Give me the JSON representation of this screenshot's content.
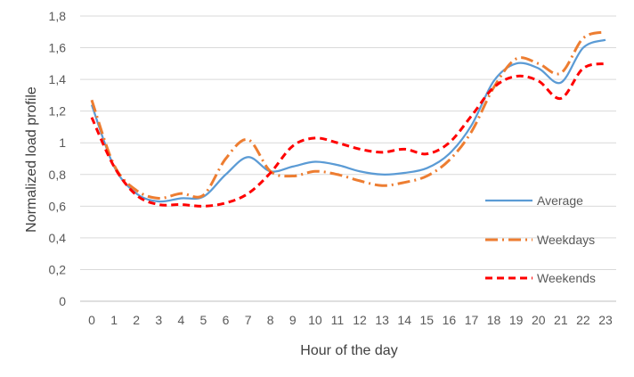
{
  "chart_data": {
    "type": "line",
    "title": "",
    "xlabel": "Hour of the day",
    "ylabel": "Normalized load profile",
    "x": [
      0,
      1,
      2,
      3,
      4,
      5,
      6,
      7,
      8,
      9,
      10,
      11,
      12,
      13,
      14,
      15,
      16,
      17,
      18,
      19,
      20,
      21,
      22,
      23
    ],
    "x_tick_labels": [
      "0",
      "1",
      "2",
      "3",
      "4",
      "5",
      "6",
      "7",
      "8",
      "9",
      "10",
      "11",
      "12",
      "13",
      "14",
      "15",
      "16",
      "17",
      "18",
      "19",
      "20",
      "21",
      "22",
      "23"
    ],
    "ylim": [
      0,
      1.8
    ],
    "y_ticks": [
      0,
      0.2,
      0.4,
      0.6,
      0.8,
      1,
      1.2,
      1.4,
      1.6,
      1.8
    ],
    "y_tick_labels": [
      "0",
      "0,2",
      "0,4",
      "0,6",
      "0,8",
      "1",
      "1,2",
      "1,4",
      "1,6",
      "1,8"
    ],
    "grid": "horizontal",
    "legend_position": "right",
    "series": [
      {
        "name": "Average",
        "color": "#5B9BD5",
        "dash": "solid",
        "values": [
          1.24,
          0.85,
          0.68,
          0.63,
          0.65,
          0.66,
          0.8,
          0.91,
          0.82,
          0.85,
          0.88,
          0.86,
          0.82,
          0.8,
          0.81,
          0.84,
          0.93,
          1.11,
          1.39,
          1.5,
          1.47,
          1.38,
          1.6,
          1.65
        ]
      },
      {
        "name": "Weekdays",
        "color": "#ED7D31",
        "dash": "dash-dot",
        "values": [
          1.27,
          0.86,
          0.7,
          0.65,
          0.68,
          0.67,
          0.9,
          1.02,
          0.82,
          0.79,
          0.82,
          0.8,
          0.76,
          0.73,
          0.75,
          0.79,
          0.89,
          1.07,
          1.35,
          1.53,
          1.5,
          1.44,
          1.66,
          1.7
        ]
      },
      {
        "name": "Weekends",
        "color": "#FF0000",
        "dash": "dashed",
        "values": [
          1.16,
          0.85,
          0.67,
          0.61,
          0.61,
          0.6,
          0.62,
          0.68,
          0.81,
          0.98,
          1.03,
          1.0,
          0.96,
          0.94,
          0.96,
          0.93,
          1.0,
          1.17,
          1.35,
          1.42,
          1.39,
          1.28,
          1.47,
          1.5
        ]
      }
    ]
  }
}
